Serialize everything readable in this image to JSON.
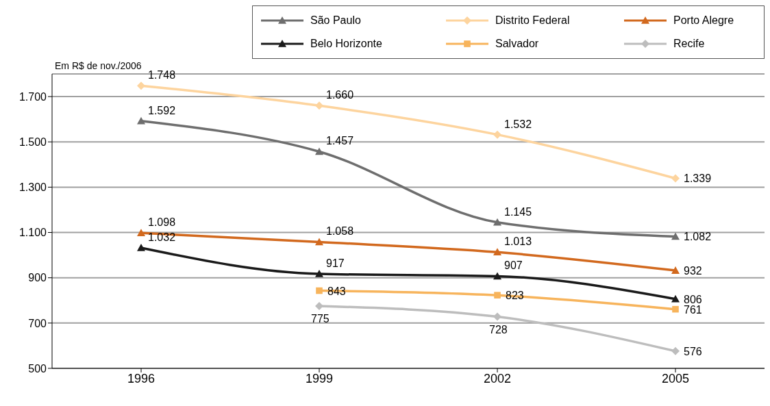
{
  "chart_data": {
    "type": "line",
    "categories": [
      "1996",
      "1999",
      "2002",
      "2005"
    ],
    "annotations": [
      "Em R$ de nov./2006"
    ],
    "series": [
      {
        "name": "São Paulo",
        "color": "#6e6e6e",
        "marker": "triangle",
        "values": [
          1592,
          1457,
          1145,
          1082
        ],
        "value_labels": [
          "1.592",
          "1.457",
          "1.145",
          "1.082"
        ]
      },
      {
        "name": "Distrito Federal",
        "color": "#fdd49e",
        "marker": "diamond",
        "values": [
          1748,
          1660,
          1532,
          1339
        ],
        "value_labels": [
          "1.748",
          "1.660",
          "1.532",
          "1.339"
        ]
      },
      {
        "name": "Porto Alegre",
        "color": "#d2691e",
        "marker": "triangle",
        "values": [
          1098,
          1058,
          1013,
          932
        ],
        "value_labels": [
          "1.098",
          "1.058",
          "1.013",
          "932"
        ]
      },
      {
        "name": "Belo Horizonte",
        "color": "#1a1a1a",
        "marker": "triangle",
        "values": [
          1032,
          917,
          907,
          806
        ],
        "value_labels": [
          "1.032",
          "917",
          "907",
          "806"
        ]
      },
      {
        "name": "Salvador",
        "color": "#f7b45c",
        "marker": "square",
        "values": [
          null,
          843,
          823,
          761
        ],
        "value_labels": [
          null,
          "843",
          "823",
          "761"
        ]
      },
      {
        "name": "Recife",
        "color": "#bdbdbd",
        "marker": "diamond",
        "values": [
          null,
          775,
          728,
          576
        ],
        "value_labels": [
          null,
          "775",
          "728",
          "576"
        ]
      }
    ],
    "ylim": [
      500,
      1800
    ],
    "yticks": [
      {
        "value": 500,
        "label": "500"
      },
      {
        "value": 700,
        "label": "700"
      },
      {
        "value": 900,
        "label": "900"
      },
      {
        "value": 1100,
        "label": "1.100"
      },
      {
        "value": 1300,
        "label": "1.300"
      },
      {
        "value": 1500,
        "label": "1.500"
      },
      {
        "value": 1700,
        "label": "1.700"
      }
    ],
    "grid": "y",
    "legend": "top right",
    "line_style": "solid"
  }
}
